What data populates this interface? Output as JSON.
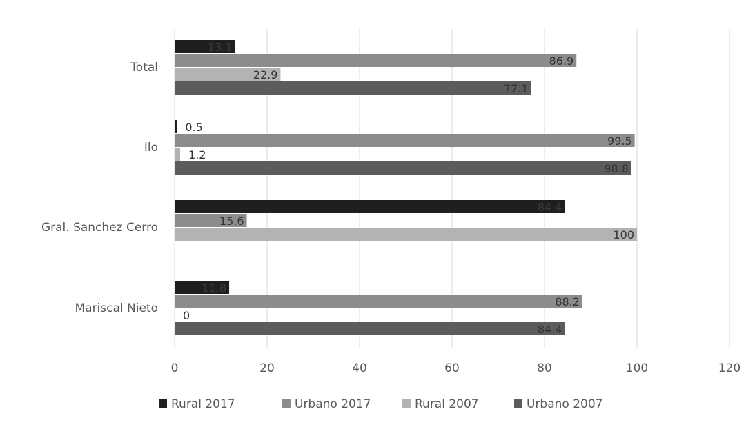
{
  "chart_data": {
    "type": "bar",
    "orientation": "horizontal",
    "categories": [
      "Total",
      "Ilo",
      "Gral. Sanchez Cerro",
      "Mariscal Nieto"
    ],
    "series": [
      {
        "name": "Rural 2017",
        "color": "#1f1f1f",
        "label_color": "#3a3a3a",
        "values": [
          13.1,
          0.5,
          84.4,
          11.8
        ],
        "labels": [
          "13.1",
          "0.5",
          "84.4",
          "11.8"
        ]
      },
      {
        "name": "Urbano 2017",
        "color": "#8c8c8c",
        "label_color": "#333333",
        "values": [
          86.9,
          99.5,
          15.6,
          88.2
        ],
        "labels": [
          "86.9",
          "99.5",
          "15.6",
          "88.2"
        ]
      },
      {
        "name": "Rural 2007",
        "color": "#b3b3b3",
        "label_color": "#333333",
        "values": [
          22.9,
          1.2,
          100,
          0
        ],
        "labels": [
          "22.9",
          "1.2",
          "100",
          "0"
        ]
      },
      {
        "name": "Urbano 2007",
        "color": "#5c5c5c",
        "label_color": "#333333",
        "values": [
          77.1,
          98.8,
          0,
          84.4
        ],
        "labels": [
          "77.1",
          "98.8",
          "",
          "84.4"
        ]
      }
    ],
    "xlim": [
      0,
      120
    ],
    "xticks": [
      "0",
      "20",
      "40",
      "60",
      "80",
      "100",
      "120"
    ],
    "grid": true,
    "legend_position": "bottom"
  }
}
